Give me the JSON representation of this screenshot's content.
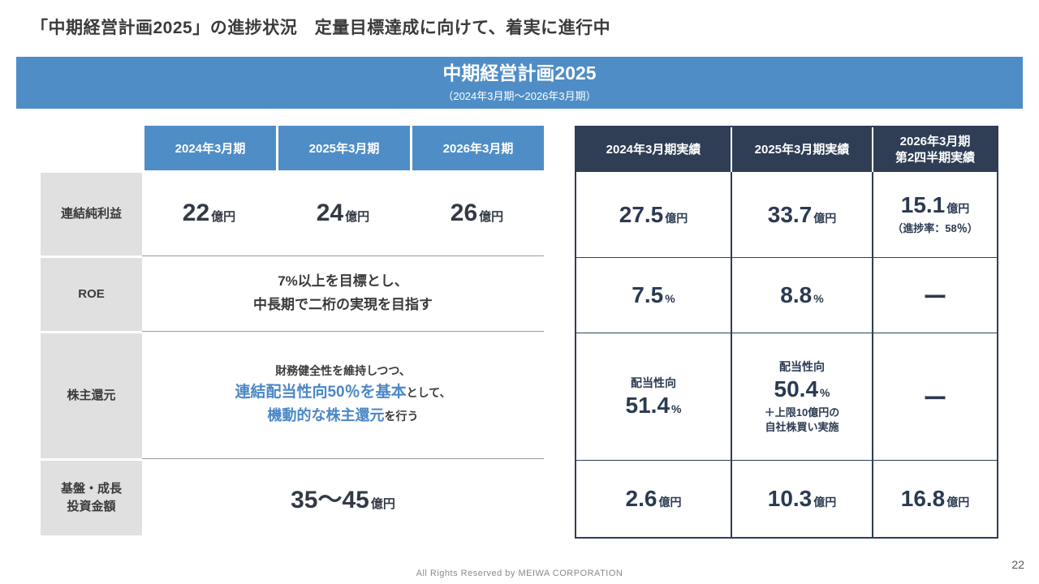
{
  "page": {
    "title": "「中期経営計画2025」の進捗状況　定量目標達成に向けて、着実に進行中",
    "footer": "All Rights Reserved by MEIWA CORPORATION",
    "page_number": "22"
  },
  "banner": {
    "title": "中期経営計画2025",
    "subtitle": "（2024年3月期～2026年3月期）"
  },
  "plan_table": {
    "col_headers": [
      "2024年3月期",
      "2025年3月期",
      "2026年3月期"
    ],
    "rows": {
      "profit": {
        "label": "連結純利益",
        "values": [
          {
            "num": "22",
            "unit": "億円"
          },
          {
            "num": "24",
            "unit": "億円"
          },
          {
            "num": "26",
            "unit": "億円"
          }
        ]
      },
      "roe": {
        "label": "ROE",
        "line1": "7%以上を目標とし、",
        "line2": "中長期で二桁の実現を目指す"
      },
      "shareholder": {
        "label": "株主還元",
        "line1": "財務健全性を維持しつつ、",
        "line2_highlight": "連結配当性向50％を基本",
        "line2_rest": "として、",
        "line3_highlight": "機動的な株主還元",
        "line3_rest": "を行う"
      },
      "investment": {
        "label": "基盤・成長\n投資金額",
        "num": "35～45",
        "unit": "億円"
      }
    }
  },
  "results_table": {
    "col_headers": [
      "2024年3月期実績",
      "2025年3月期実績",
      "2026年3月期\n第2四半期実績"
    ],
    "profit": [
      {
        "num": "27.5",
        "unit": "億円"
      },
      {
        "num": "33.7",
        "unit": "億円"
      },
      {
        "num": "15.1",
        "unit": "億円",
        "note": "（進捗率：58％）"
      }
    ],
    "roe": [
      {
        "num": "7.5",
        "unit": "%"
      },
      {
        "num": "8.8",
        "unit": "%"
      },
      {
        "dash": "ー"
      }
    ],
    "shareholder": [
      {
        "caption": "配当性向",
        "num": "51.4",
        "unit": "%"
      },
      {
        "caption": "配当性向",
        "num": "50.4",
        "unit": "%",
        "note1": "＋上限10億円の",
        "note2": "自社株買い実施"
      },
      {
        "dash": "ー"
      }
    ],
    "investment": [
      {
        "num": "2.6",
        "unit": "億円"
      },
      {
        "num": "10.3",
        "unit": "億円"
      },
      {
        "num": "16.8",
        "unit": "億円"
      }
    ]
  },
  "colors": {
    "accent_blue": "#4f8dc6",
    "navy": "#2f3e55",
    "highlight_blue": "#4a87c6",
    "label_gray": "#e0e0e0"
  }
}
